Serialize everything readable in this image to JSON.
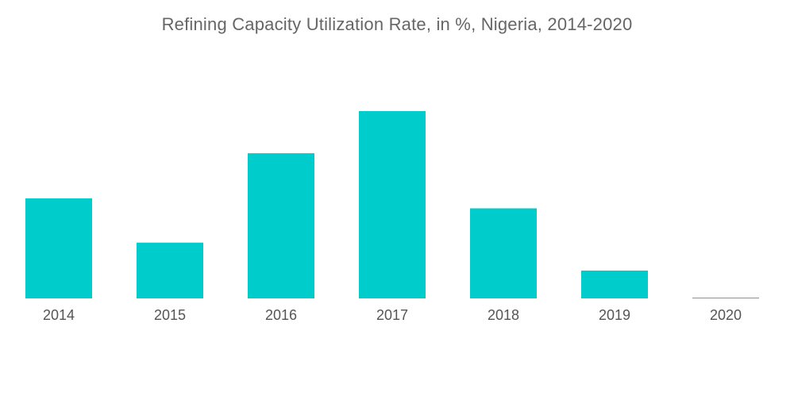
{
  "chart_data": {
    "type": "bar",
    "title": "Refining Capacity Utilization Rate, in %, Nigeria, 2014-2020",
    "categories": [
      "2014",
      "2015",
      "2016",
      "2017",
      "2018",
      "2019",
      "2020"
    ],
    "values": [
      14,
      7.8,
      20.3,
      26.2,
      12.6,
      3.9,
      0.1
    ],
    "xlabel": "",
    "ylabel": "",
    "ylim": [
      0,
      26.2
    ],
    "grid": false,
    "legend": "none",
    "bar_color": "#00cccc",
    "tick_label_color": "#555555"
  }
}
